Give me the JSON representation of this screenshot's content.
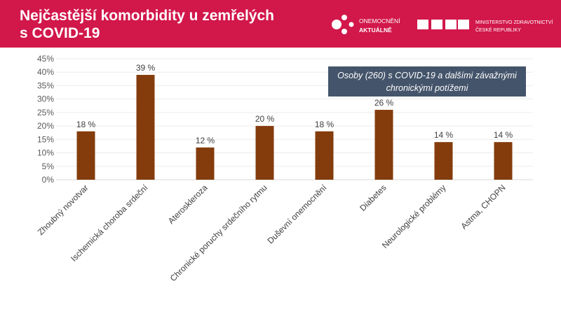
{
  "header": {
    "title": "Nejčastější komorbidity u zemřelých\ns COVID-19",
    "logo1_line1": "ONEMOCNĚNÍ",
    "logo1_line2": "AKTUÁLNĚ",
    "logo2_line1": "MINISTERSTVO ZDRAVOTNICTVÍ",
    "logo2_line2": "ČESKÉ REPUBLIKY",
    "brand_color": "#d2174a"
  },
  "chart_data": {
    "type": "bar",
    "categories": [
      "Zhoubný novotvar",
      "Ischemická choroba srdeční",
      "Ateroskleroza",
      "Chronické poruchy srdečního rytmu",
      "Duševní onemocnění",
      "Diabetes",
      "Neurologické problémy",
      "Astma, CHOPN"
    ],
    "values": [
      18,
      39,
      12,
      20,
      18,
      26,
      14,
      14
    ],
    "data_labels": [
      "18 %",
      "39 %",
      "12 %",
      "20 %",
      "18 %",
      "26 %",
      "14 %",
      "14 %"
    ],
    "ylim": [
      0,
      45
    ],
    "yticks": [
      "0%",
      "5%",
      "10%",
      "15%",
      "20%",
      "25%",
      "30%",
      "35%",
      "40%",
      "45%"
    ],
    "grid": true,
    "bar_color": "#843c0c",
    "annotation": "Osoby (260) s COVID-19 a dalšími závažnými chronickými potížemi"
  }
}
